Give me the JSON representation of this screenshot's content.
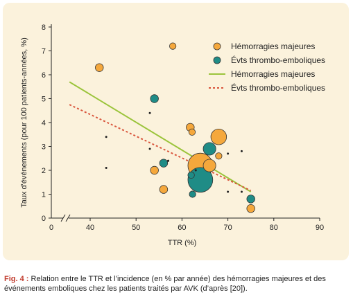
{
  "chart_data": {
    "type": "scatter",
    "xlabel": "TTR (%)",
    "ylabel": "Taux d'événements (pour 100 patients-années, %)",
    "xlim": [
      30,
      90
    ],
    "ylim": [
      0,
      8
    ],
    "x_ticks": [
      "0",
      "40",
      "50",
      "60",
      "70",
      "80",
      "90"
    ],
    "y_ticks": [
      "0",
      "1",
      "2",
      "3",
      "4",
      "5",
      "6",
      "7",
      "8"
    ],
    "axis_break": true,
    "grid": false,
    "legend_position": "top-right",
    "series": [
      {
        "name": "Hémorragies majeures",
        "kind": "points",
        "color": "#f5a83c",
        "points": [
          {
            "x": 42,
            "y": 6.3,
            "size": 3
          },
          {
            "x": 58,
            "y": 7.2,
            "size": 2
          },
          {
            "x": 53,
            "y": 4.4,
            "size": 1
          },
          {
            "x": 54,
            "y": 2.0,
            "size": 3
          },
          {
            "x": 56,
            "y": 1.2,
            "size": 3
          },
          {
            "x": 57,
            "y": 2.4,
            "size": 1
          },
          {
            "x": 61.8,
            "y": 3.8,
            "size": 3
          },
          {
            "x": 62.2,
            "y": 3.6,
            "size": 2
          },
          {
            "x": 64,
            "y": 2.2,
            "size": 14
          },
          {
            "x": 66,
            "y": 2.2,
            "size": 6
          },
          {
            "x": 68,
            "y": 3.4,
            "size": 8
          },
          {
            "x": 68,
            "y": 2.6,
            "size": 2
          },
          {
            "x": 75,
            "y": 0.4,
            "size": 3
          }
        ]
      },
      {
        "name": "Évts thrombo-emboliques",
        "kind": "points",
        "color": "#1f8c86",
        "points": [
          {
            "x": 43.5,
            "y": 3.4,
            "size": 1
          },
          {
            "x": 43.5,
            "y": 2.1,
            "size": 1
          },
          {
            "x": 53,
            "y": 2.9,
            "size": 1
          },
          {
            "x": 54,
            "y": 5.0,
            "size": 3
          },
          {
            "x": 56,
            "y": 2.3,
            "size": 3
          },
          {
            "x": 57,
            "y": 2.4,
            "size": 1
          },
          {
            "x": 62,
            "y": 1.8,
            "size": 2
          },
          {
            "x": 62.3,
            "y": 1.0,
            "size": 2
          },
          {
            "x": 63,
            "y": 2.0,
            "size": 1
          },
          {
            "x": 64,
            "y": 1.6,
            "size": 14
          },
          {
            "x": 66,
            "y": 2.9,
            "size": 6
          },
          {
            "x": 70,
            "y": 2.7,
            "size": 1
          },
          {
            "x": 70,
            "y": 1.1,
            "size": 1
          },
          {
            "x": 73,
            "y": 2.8,
            "size": 1
          },
          {
            "x": 73,
            "y": 1.1,
            "size": 1
          },
          {
            "x": 75,
            "y": 0.8,
            "size": 3
          }
        ]
      },
      {
        "name": "Hémorragies majeures",
        "kind": "line",
        "style": "solid",
        "color": "#9bc43b",
        "points": [
          {
            "x": 35.5,
            "y": 5.7
          },
          {
            "x": 75,
            "y": 1.1
          }
        ]
      },
      {
        "name": "Évts thrombo-emboliques",
        "kind": "line",
        "style": "dotted",
        "color": "#d9553c",
        "points": [
          {
            "x": 35.5,
            "y": 4.75
          },
          {
            "x": 75,
            "y": 1.15
          }
        ]
      }
    ]
  },
  "caption": {
    "label": "Fig. 4 :",
    "text": " Relation entre le TTR et l’incidence (en % par année) des hémorragies majeures et des événements emboliques chez les patients traités par AVK (d’après [20])."
  }
}
